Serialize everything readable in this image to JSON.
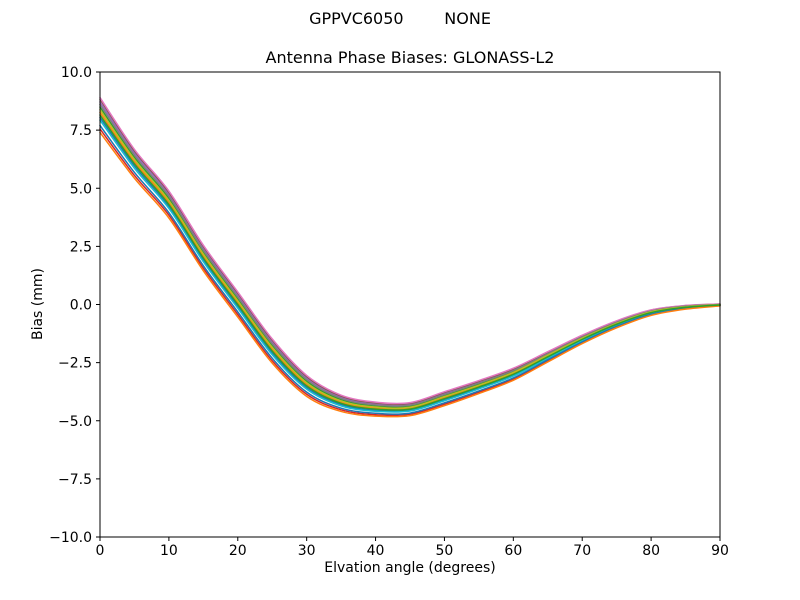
{
  "figure": {
    "suptitle": "GPPVC6050        NONE",
    "background": "#ffffff"
  },
  "chart_data": {
    "type": "line",
    "title": "Antenna Phase Biases: GLONASS-L2",
    "xlabel": "Elvation angle (degrees)",
    "ylabel": "Bias (mm)",
    "xlim": [
      0,
      90
    ],
    "ylim": [
      -10.0,
      10.0
    ],
    "grid": false,
    "legend_position": "none",
    "line_width": 1.5,
    "axis_color": "#000000",
    "xticks": [
      {
        "value": 0,
        "label": "0"
      },
      {
        "value": 10,
        "label": "10"
      },
      {
        "value": 20,
        "label": "20"
      },
      {
        "value": 30,
        "label": "30"
      },
      {
        "value": 40,
        "label": "40"
      },
      {
        "value": 50,
        "label": "50"
      },
      {
        "value": 60,
        "label": "60"
      },
      {
        "value": 70,
        "label": "70"
      },
      {
        "value": 80,
        "label": "80"
      },
      {
        "value": 90,
        "label": "90"
      }
    ],
    "yticks": [
      {
        "value": 10.0,
        "label": "10.0"
      },
      {
        "value": 7.5,
        "label": "7.5"
      },
      {
        "value": 5.0,
        "label": "5.0"
      },
      {
        "value": 2.5,
        "label": "2.5"
      },
      {
        "value": 0.0,
        "label": "0.0"
      },
      {
        "value": -2.5,
        "label": "−2.5"
      },
      {
        "value": -5.0,
        "label": "−5.0"
      },
      {
        "value": -7.5,
        "label": "−7.5"
      },
      {
        "value": -10.0,
        "label": "−10.0"
      }
    ],
    "x": [
      0,
      5,
      10,
      15,
      20,
      25,
      30,
      35,
      40,
      45,
      50,
      55,
      60,
      65,
      70,
      75,
      80,
      85,
      90
    ],
    "series": [
      {
        "name": "line-01",
        "color": "#1f77b4",
        "values": [
          8.04,
          5.96,
          4.21,
          1.92,
          -0.08,
          -2.08,
          -3.57,
          -4.3,
          -4.55,
          -4.54,
          -4.1,
          -3.59,
          -3.04,
          -2.28,
          -1.53,
          -0.87,
          -0.37,
          -0.13,
          -0.03
        ]
      },
      {
        "name": "line-02",
        "color": "#ff7f0e",
        "values": [
          8.26,
          6.14,
          4.39,
          2.08,
          0.08,
          -1.92,
          -3.43,
          -4.2,
          -4.46,
          -4.46,
          -4.01,
          -3.51,
          -2.96,
          -2.22,
          -1.47,
          -0.83,
          -0.33,
          -0.11,
          -0.01
        ]
      },
      {
        "name": "line-03",
        "color": "#2ca02c",
        "values": [
          8.49,
          6.33,
          4.56,
          2.25,
          0.24,
          -1.77,
          -3.3,
          -4.09,
          -4.37,
          -4.37,
          -3.92,
          -3.42,
          -2.88,
          -2.15,
          -1.42,
          -0.78,
          -0.3,
          -0.08,
          0.0
        ]
      },
      {
        "name": "line-04",
        "color": "#d62728",
        "values": [
          7.55,
          5.55,
          3.84,
          1.56,
          -0.43,
          -2.42,
          -3.86,
          -4.53,
          -4.74,
          -4.72,
          -4.29,
          -3.77,
          -3.21,
          -2.43,
          -1.64,
          -0.97,
          -0.45,
          -0.18,
          -0.05
        ]
      },
      {
        "name": "line-05",
        "color": "#9467bd",
        "values": [
          8.71,
          6.52,
          4.74,
          2.41,
          0.41,
          -1.61,
          -3.16,
          -3.99,
          -4.28,
          -4.29,
          -3.83,
          -3.34,
          -2.81,
          -2.09,
          -1.37,
          -0.74,
          -0.26,
          -0.06,
          0.01
        ]
      },
      {
        "name": "line-06",
        "color": "#8c564b",
        "values": [
          8.83,
          6.61,
          4.82,
          2.5,
          0.49,
          -1.53,
          -3.1,
          -3.94,
          -4.23,
          -4.25,
          -3.78,
          -3.3,
          -2.77,
          -2.05,
          -1.34,
          -0.72,
          -0.24,
          -0.05,
          0.02
        ]
      },
      {
        "name": "line-07",
        "color": "#e377c2",
        "values": [
          8.9,
          6.67,
          4.88,
          2.55,
          0.54,
          -1.48,
          -3.05,
          -3.9,
          -4.2,
          -4.22,
          -3.75,
          -3.27,
          -2.74,
          -2.03,
          -1.32,
          -0.7,
          -0.23,
          -0.04,
          0.02
        ]
      },
      {
        "name": "line-08",
        "color": "#7f7f7f",
        "values": [
          8.6,
          6.42,
          4.65,
          2.33,
          0.32,
          -1.69,
          -3.23,
          -4.04,
          -4.32,
          -4.33,
          -3.87,
          -3.38,
          -2.84,
          -2.12,
          -1.39,
          -0.76,
          -0.28,
          -0.07,
          0.0
        ]
      },
      {
        "name": "line-09",
        "color": "#bcbd22",
        "values": [
          8.38,
          6.24,
          4.47,
          2.17,
          0.16,
          -1.84,
          -3.37,
          -4.15,
          -4.41,
          -4.42,
          -3.96,
          -3.47,
          -2.92,
          -2.18,
          -1.45,
          -0.81,
          -0.31,
          -0.1,
          -0.01
        ]
      },
      {
        "name": "line-10",
        "color": "#17becf",
        "values": [
          7.93,
          5.86,
          4.13,
          1.84,
          -0.16,
          -2.16,
          -3.64,
          -4.36,
          -4.59,
          -4.58,
          -4.14,
          -3.63,
          -3.08,
          -2.32,
          -1.55,
          -0.9,
          -0.39,
          -0.14,
          -0.03
        ]
      },
      {
        "name": "line-11",
        "color": "#1f77b4",
        "values": [
          7.7,
          5.68,
          3.95,
          1.67,
          -0.32,
          -2.31,
          -3.77,
          -4.46,
          -4.68,
          -4.67,
          -4.23,
          -3.72,
          -3.16,
          -2.38,
          -1.61,
          -0.94,
          -0.42,
          -0.17,
          -0.04
        ]
      },
      {
        "name": "line-12",
        "color": "#ff7f0e",
        "values": [
          7.4,
          5.43,
          3.72,
          1.45,
          -0.54,
          -2.52,
          -3.95,
          -4.6,
          -4.8,
          -4.78,
          -4.35,
          -3.83,
          -3.26,
          -2.47,
          -1.68,
          -1.0,
          -0.47,
          -0.2,
          -0.06
        ]
      },
      {
        "name": "line-13",
        "color": "#2ca02c",
        "values": [
          8.15,
          6.05,
          4.3,
          2.0,
          0.0,
          -2.0,
          -3.5,
          -4.25,
          -4.5,
          -4.5,
          -4.05,
          -3.55,
          -3.0,
          -2.25,
          -1.5,
          -0.85,
          -0.35,
          -0.12,
          -0.02
        ]
      }
    ]
  }
}
